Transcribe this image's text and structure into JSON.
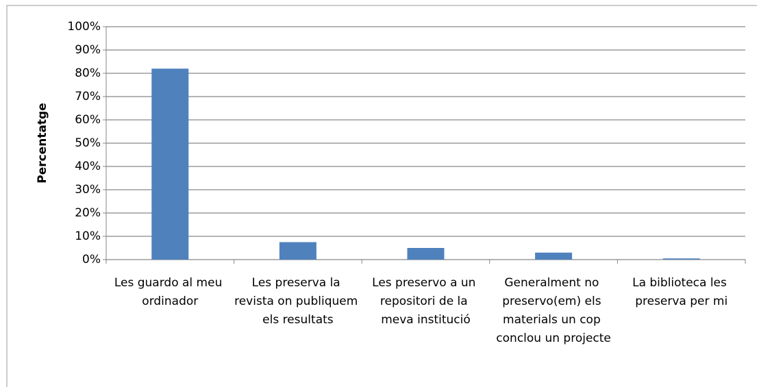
{
  "chart_data": {
    "type": "bar",
    "y_label": "Percentatge",
    "categories": [
      "Les guardo al meu ordinador",
      "Les preserva la revista on publiquem els resultats",
      "Les preservo a un repositori de la meva institució",
      "Generalment no preservo(em) els materials un cop conclou un projecte",
      "La biblioteca les preserva per mi"
    ],
    "values": [
      82,
      7.5,
      5,
      3,
      0.5
    ],
    "color": "#4f81bd",
    "ylim": [
      0,
      100
    ],
    "yticks": [
      {
        "value": 0,
        "label": "0%"
      },
      {
        "value": 10,
        "label": "10%"
      },
      {
        "value": 20,
        "label": "20%"
      },
      {
        "value": 30,
        "label": "30%"
      },
      {
        "value": 40,
        "label": "40%"
      },
      {
        "value": 50,
        "label": "50%"
      },
      {
        "value": 60,
        "label": "60%"
      },
      {
        "value": 70,
        "label": "70%"
      },
      {
        "value": 80,
        "label": "80%"
      },
      {
        "value": 90,
        "label": "90%"
      },
      {
        "value": 100,
        "label": "100%"
      }
    ],
    "grid": true
  }
}
